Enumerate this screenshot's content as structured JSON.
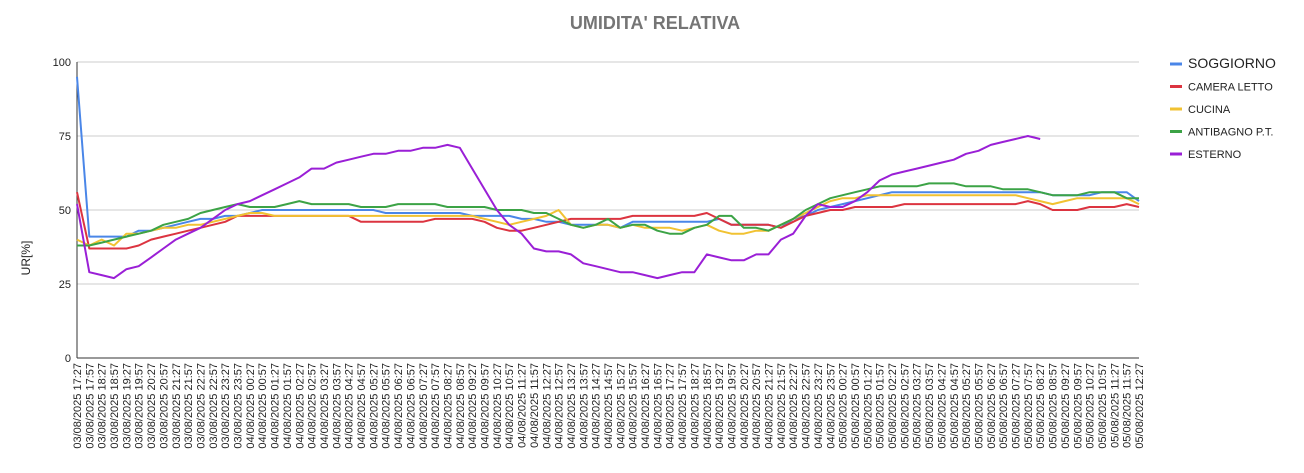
{
  "chart_data": {
    "type": "line",
    "title": "UMIDITA' RELATIVA",
    "y_label": "UR[%]",
    "categories": [
      "03/08/2025 17:27",
      "03/08/2025 17:57",
      "03/08/2025 18:27",
      "03/08/2025 18:57",
      "03/08/2025 19:27",
      "03/08/2025 19:57",
      "03/08/2025 20:27",
      "03/08/2025 20:57",
      "03/08/2025 21:27",
      "03/08/2025 21:57",
      "03/08/2025 22:27",
      "03/08/2025 22:57",
      "03/08/2025 23:27",
      "03/08/2025 23:57",
      "04/08/2025 00:27",
      "04/08/2025 00:57",
      "04/08/2025 01:27",
      "04/08/2025 01:57",
      "04/08/2025 02:27",
      "04/08/2025 02:57",
      "04/08/2025 03:27",
      "04/08/2025 03:57",
      "04/08/2025 04:27",
      "04/08/2025 04:57",
      "04/08/2025 05:27",
      "04/08/2025 05:57",
      "04/08/2025 06:27",
      "04/08/2025 06:57",
      "04/08/2025 07:27",
      "04/08/2025 07:57",
      "04/08/2025 08:27",
      "04/08/2025 08:57",
      "04/08/2025 09:27",
      "04/08/2025 09:57",
      "04/08/2025 10:27",
      "04/08/2025 10:57",
      "04/08/2025 11:27",
      "04/08/2025 11:57",
      "04/08/2025 12:27",
      "04/08/2025 12:57",
      "04/08/2025 13:27",
      "04/08/2025 13:57",
      "04/08/2025 14:27",
      "04/08/2025 14:57",
      "04/08/2025 15:27",
      "04/08/2025 15:57",
      "04/08/2025 16:27",
      "04/08/2025 16:57",
      "04/08/2025 17:27",
      "04/08/2025 17:57",
      "04/08/2025 18:27",
      "04/08/2025 18:57",
      "04/08/2025 19:27",
      "04/08/2025 19:57",
      "04/08/2025 20:27",
      "04/08/2025 20:57",
      "04/08/2025 21:27",
      "04/08/2025 21:57",
      "04/08/2025 22:27",
      "04/08/2025 22:57",
      "04/08/2025 23:27",
      "04/08/2025 23:57",
      "05/08/2025 00:27",
      "05/08/2025 00:57",
      "05/08/2025 01:27",
      "05/08/2025 01:57",
      "05/08/2025 02:27",
      "05/08/2025 02:57",
      "05/08/2025 03:27",
      "05/08/2025 03:57",
      "05/08/2025 04:27",
      "05/08/2025 04:57",
      "05/08/2025 05:27",
      "05/08/2025 05:57",
      "05/08/2025 06:27",
      "05/08/2025 06:57",
      "05/08/2025 07:27",
      "05/08/2025 07:57",
      "05/08/2025 08:27",
      "05/08/2025 08:57",
      "05/08/2025 09:27",
      "05/08/2025 09:57",
      "05/08/2025 10:27",
      "05/08/2025 10:57",
      "05/08/2025 11:27",
      "05/08/2025 11:57",
      "05/08/2025 12:27"
    ],
    "series": [
      {
        "name": "SOGGIORNO",
        "color": "#4a86e8",
        "values": [
          95,
          41,
          41,
          41,
          41,
          43,
          43,
          44,
          45,
          46,
          47,
          47,
          48,
          48,
          49,
          50,
          50,
          50,
          50,
          50,
          50,
          50,
          50,
          50,
          50,
          49,
          49,
          49,
          49,
          49,
          49,
          49,
          48,
          48,
          48,
          48,
          47,
          47,
          46,
          46,
          45,
          45,
          45,
          45,
          44,
          46,
          46,
          46,
          46,
          46,
          46,
          46,
          47,
          45,
          45,
          45,
          45,
          44,
          47,
          48,
          50,
          51,
          52,
          53,
          54,
          55,
          56,
          56,
          56,
          56,
          56,
          56,
          56,
          56,
          56,
          56,
          56,
          56,
          56,
          55,
          55,
          55,
          55,
          56,
          56,
          56,
          53
        ]
      },
      {
        "name": "CAMERA LETTO",
        "color": "#dc3440",
        "values": [
          56,
          37,
          37,
          37,
          37,
          38,
          40,
          41,
          42,
          43,
          44,
          45,
          46,
          48,
          48,
          48,
          48,
          48,
          48,
          48,
          48,
          48,
          48,
          46,
          46,
          46,
          46,
          46,
          46,
          47,
          47,
          47,
          47,
          46,
          44,
          43,
          43,
          44,
          45,
          46,
          47,
          47,
          47,
          47,
          47,
          48,
          48,
          48,
          48,
          48,
          48,
          49,
          47,
          45,
          45,
          45,
          45,
          44,
          46,
          48,
          49,
          50,
          50,
          51,
          51,
          51,
          51,
          52,
          52,
          52,
          52,
          52,
          52,
          52,
          52,
          52,
          52,
          53,
          52,
          50,
          50,
          50,
          51,
          51,
          51,
          52,
          51
        ]
      },
      {
        "name": "CUCINA",
        "color": "#f1c232",
        "values": [
          40,
          38,
          40,
          38,
          42,
          42,
          43,
          44,
          44,
          45,
          45,
          46,
          47,
          48,
          49,
          49,
          48,
          48,
          48,
          48,
          48,
          48,
          48,
          48,
          48,
          48,
          48,
          48,
          48,
          48,
          48,
          48,
          48,
          47,
          46,
          45,
          46,
          47,
          48,
          50,
          45,
          44,
          45,
          45,
          44,
          45,
          44,
          44,
          44,
          43,
          44,
          45,
          43,
          42,
          42,
          43,
          43,
          45,
          47,
          49,
          51,
          53,
          54,
          54,
          55,
          55,
          55,
          55,
          55,
          55,
          55,
          55,
          55,
          55,
          55,
          55,
          55,
          54,
          53,
          52,
          53,
          54,
          54,
          54,
          54,
          54,
          52
        ]
      },
      {
        "name": "ANTIBAGNO P.T.",
        "color": "#3ca346",
        "values": [
          38,
          38,
          39,
          40,
          41,
          42,
          43,
          45,
          46,
          47,
          49,
          50,
          51,
          52,
          51,
          51,
          51,
          52,
          53,
          52,
          52,
          52,
          52,
          51,
          51,
          51,
          52,
          52,
          52,
          52,
          51,
          51,
          51,
          51,
          50,
          50,
          50,
          49,
          49,
          47,
          45,
          44,
          45,
          47,
          44,
          45,
          45,
          43,
          42,
          42,
          44,
          45,
          48,
          48,
          44,
          44,
          43,
          45,
          47,
          50,
          52,
          54,
          55,
          56,
          57,
          58,
          58,
          58,
          58,
          59,
          59,
          59,
          58,
          58,
          58,
          57,
          57,
          57,
          56,
          55,
          55,
          55,
          56,
          56,
          56,
          54,
          54
        ]
      },
      {
        "name": "ESTERNO",
        "color": "#9a1fd6",
        "values": [
          52,
          29,
          28,
          27,
          30,
          31,
          34,
          37,
          40,
          42,
          44,
          47,
          50,
          52,
          53,
          55,
          57,
          59,
          61,
          64,
          64,
          66,
          67,
          68,
          69,
          69,
          70,
          70,
          71,
          71,
          72,
          71,
          64,
          57,
          50,
          45,
          42,
          37,
          36,
          36,
          35,
          32,
          31,
          30,
          29,
          29,
          28,
          27,
          28,
          29,
          29,
          35,
          34,
          33,
          33,
          35,
          35,
          40,
          42,
          48,
          52,
          51,
          51,
          53,
          56,
          60,
          62,
          63,
          64,
          65,
          66,
          67,
          69,
          70,
          72,
          73,
          74,
          75,
          74,
          null,
          null,
          null,
          null,
          null,
          null,
          null,
          null
        ]
      }
    ],
    "ylim": [
      0,
      100
    ],
    "yticks": [
      0,
      25,
      50,
      75,
      100
    ],
    "grid": true,
    "legend": "right"
  }
}
